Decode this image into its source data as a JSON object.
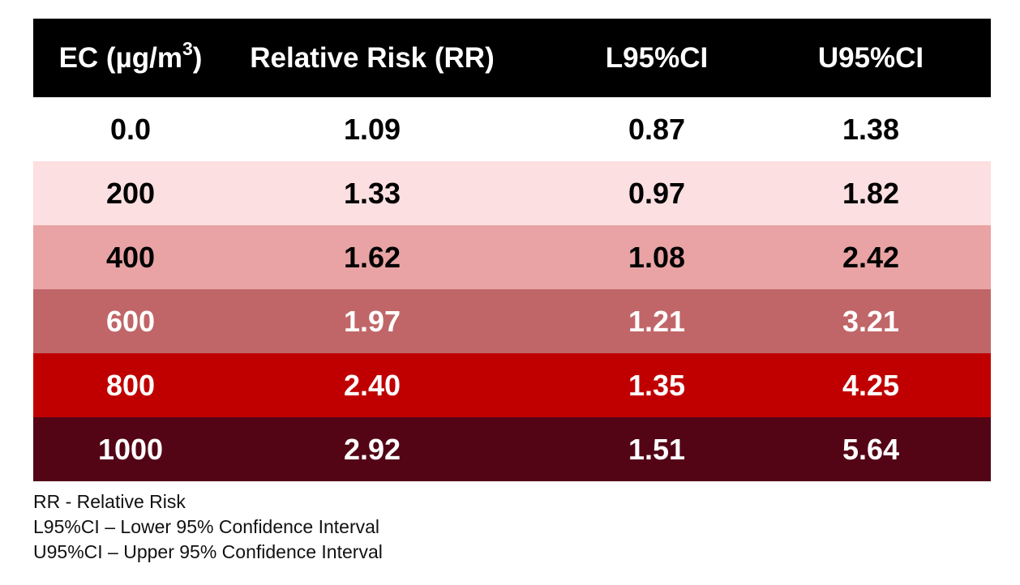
{
  "chart_data": {
    "type": "table",
    "columns": [
      "EC (µg/m3)",
      "Relative Risk (RR)",
      "L95%CI",
      "U95%CI"
    ],
    "header": {
      "ec": "EC (µg/m",
      "ec_sup": "3",
      "ec_close": ")",
      "rr": "Relative Risk (RR)",
      "l95": "L95%CI",
      "u95": "U95%CI"
    },
    "rows": [
      {
        "ec": "0.0",
        "rr": "1.09",
        "l95": "0.87",
        "u95": "1.38",
        "bg": "#ffffff",
        "fg": "#000000"
      },
      {
        "ec": "200",
        "rr": "1.33",
        "l95": "0.97",
        "u95": "1.82",
        "bg": "#fcdfe0",
        "fg": "#000000"
      },
      {
        "ec": "400",
        "rr": "1.62",
        "l95": "1.08",
        "u95": "2.42",
        "bg": "#e9a3a4",
        "fg": "#000000"
      },
      {
        "ec": "600",
        "rr": "1.97",
        "l95": "1.21",
        "u95": "3.21",
        "bg": "#c06668",
        "fg": "#ffffff"
      },
      {
        "ec": "800",
        "rr": "2.40",
        "l95": "1.35",
        "u95": "4.25",
        "bg": "#c00000",
        "fg": "#ffffff"
      },
      {
        "ec": "1000",
        "rr": "2.92",
        "l95": "1.51",
        "u95": "5.64",
        "bg": "#530516",
        "fg": "#ffffff"
      }
    ],
    "header_bg": "#000000",
    "header_fg": "#ffffff"
  },
  "notes": [
    "RR - Relative Risk",
    "L95%CI – Lower 95% Confidence Interval",
    "U95%CI – Upper 95% Confidence Interval"
  ]
}
